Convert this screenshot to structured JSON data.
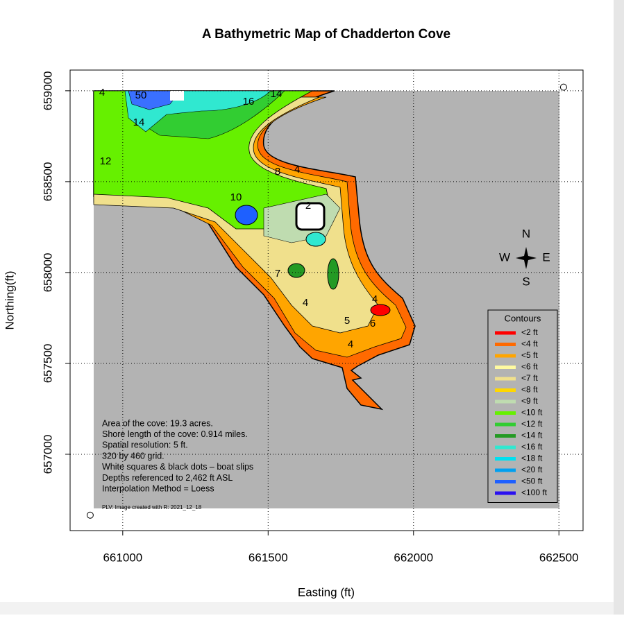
{
  "chart_data": {
    "type": "contour-map",
    "title": "A Bathymetric Map of  Chadderton Cove",
    "x_label": "Easting (ft)",
    "y_label": "Northing(ft)",
    "xlim": [
      660819,
      662583
    ],
    "ylim": [
      656580,
      659114
    ],
    "xticks": [
      661000,
      661500,
      662000,
      662500
    ],
    "yticks": [
      657000,
      657500,
      658000,
      658500,
      659000
    ],
    "grid": true,
    "points": {
      "x": [
        662516,
        660888
      ],
      "y": [
        659020,
        656665
      ]
    },
    "compass": {
      "n": "N",
      "w": "W",
      "e": "E",
      "s": "S"
    },
    "legend": {
      "title": "Contours",
      "position": "lower-right",
      "items": [
        {
          "label": "<2 ft",
          "color": "#ff0000"
        },
        {
          "label": "<4 ft",
          "color": "#ff6a00"
        },
        {
          "label": "<5 ft",
          "color": "#ffa500"
        },
        {
          "label": "<6 ft",
          "color": "#fffaa0"
        },
        {
          "label": "<7 ft",
          "color": "#f0e08c"
        },
        {
          "label": "<8 ft",
          "color": "#ffd700"
        },
        {
          "label": "<9 ft",
          "color": "#bfdcb0"
        },
        {
          "label": "<10 ft",
          "color": "#66f000"
        },
        {
          "label": "<12 ft",
          "color": "#32cd32"
        },
        {
          "label": "<14 ft",
          "color": "#249a24"
        },
        {
          "label": "<16 ft",
          "color": "#30e8d0"
        },
        {
          "label": "<18 ft",
          "color": "#00e0f0"
        },
        {
          "label": "<20 ft",
          "color": "#00a0f0"
        },
        {
          "label": "<50 ft",
          "color": "#1e60ff"
        },
        {
          "label": "<100 ft",
          "color": "#2a10f0"
        }
      ]
    },
    "notes": [
      "Area of the cove: 19.3 acres.",
      "Shore length of the cove: 0.914 miles.",
      "Spatial resolution: 5 ft.",
      "320 by 460 grid.",
      "White squares & black dots – boat slips",
      "Depths referenced to 2,462 ft ASL",
      "Interpolation Method =  Loess"
    ],
    "credit": "PLV: Image created with R: 2021_12_18",
    "contour_labels": [
      "4",
      "50",
      "16",
      "14",
      "14",
      "12",
      "10",
      "8",
      "4",
      "2",
      "7",
      "4",
      "5",
      "6",
      "4",
      "4"
    ]
  }
}
